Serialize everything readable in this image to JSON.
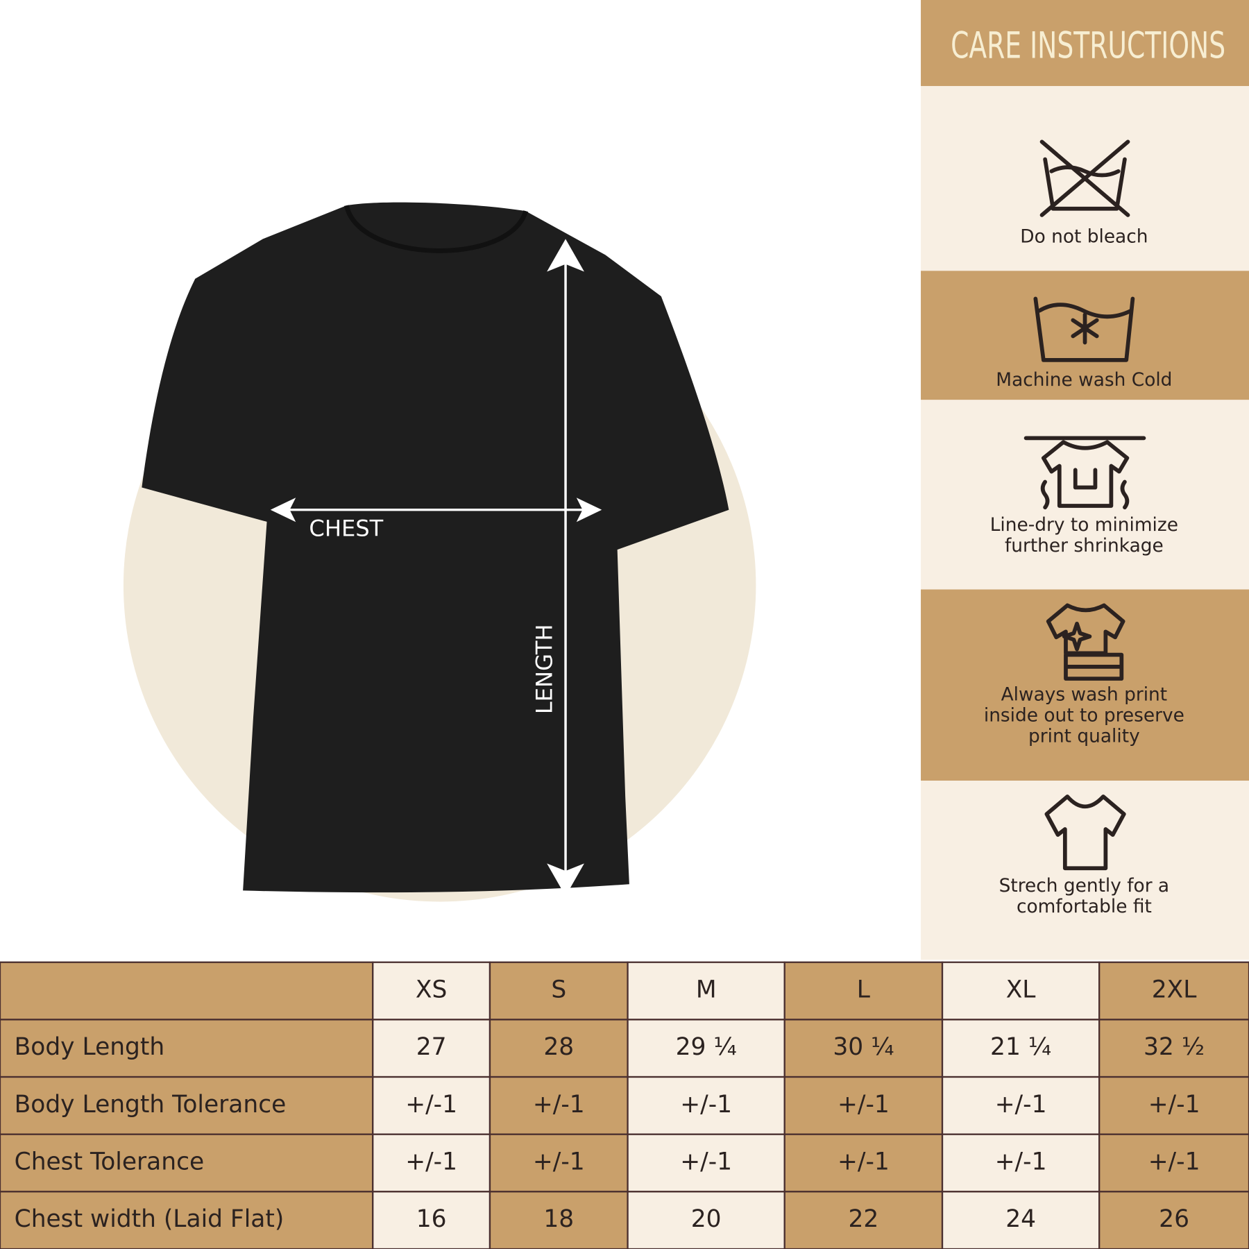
{
  "shirt": {
    "chest_label": "CHEST",
    "length_label": "LENGTH"
  },
  "care": {
    "title": "CARE INSTRUCTIONS",
    "items": [
      {
        "lines": [
          "Do not bleach"
        ]
      },
      {
        "lines": [
          "Machine wash Cold"
        ]
      },
      {
        "lines": [
          "Line-dry to minimize",
          "further shrinkage"
        ]
      },
      {
        "lines": [
          "Always wash print",
          "inside out to preserve",
          "print quality"
        ]
      },
      {
        "lines": [
          "Strech gently for a",
          "comfortable fit"
        ]
      }
    ]
  },
  "table": {
    "columns": [
      "XS",
      "S",
      "M",
      "L",
      "XL",
      "2XL"
    ],
    "rows": [
      [
        "Body Length",
        "27",
        "28",
        "29 ¼",
        "30 ¼",
        "21 ¼",
        "32 ½"
      ],
      [
        "Body Length Tolerance",
        "+/-1",
        "+/-1",
        "+/-1",
        "+/-1",
        "+/-1",
        "+/-1"
      ],
      [
        "Chest Tolerance",
        "+/-1",
        "+/-1",
        "+/-1",
        "+/-1",
        "+/-1",
        "+/-1"
      ],
      [
        "Chest width (Laid Flat)",
        "16",
        "18",
        "20",
        "22",
        "24",
        "26"
      ]
    ]
  }
}
